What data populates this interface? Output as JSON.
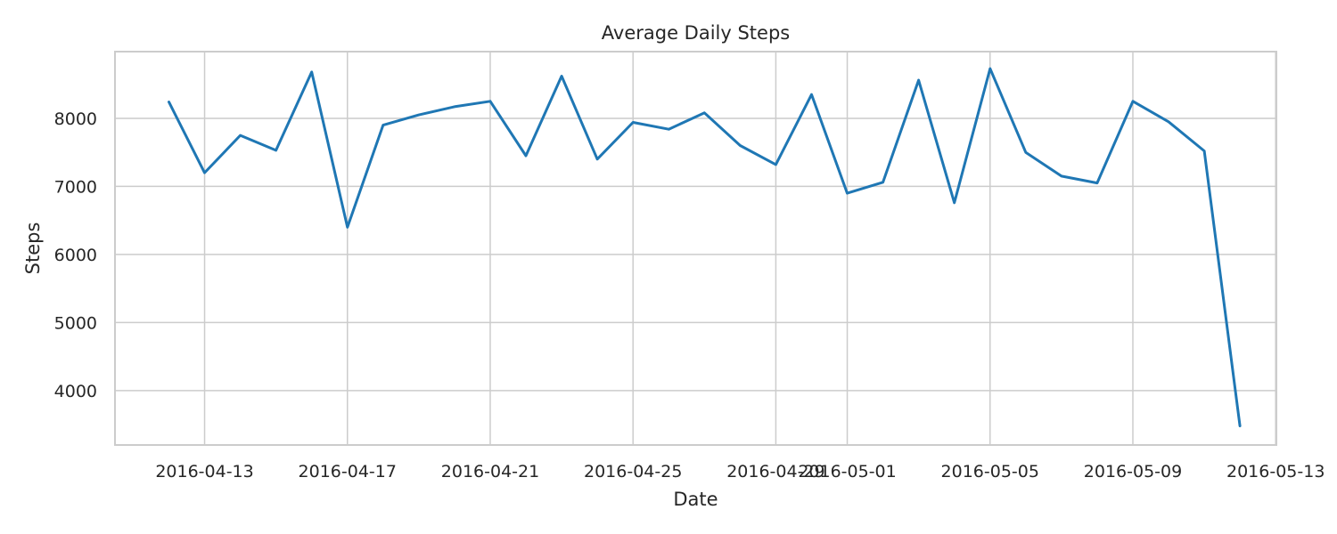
{
  "chart_data": {
    "type": "line",
    "title": "Average Daily Steps",
    "xlabel": "Date",
    "ylabel": "Steps",
    "x_ticks": [
      "2016-04-13",
      "2016-04-17",
      "2016-04-21",
      "2016-04-25",
      "2016-04-29",
      "2016-05-01",
      "2016-05-05",
      "2016-05-09",
      "2016-05-13"
    ],
    "y_ticks": [
      4000,
      5000,
      6000,
      7000,
      8000
    ],
    "xlim": [
      "2016-04-10",
      "2016-05-13"
    ],
    "ylim": [
      3200,
      8980
    ],
    "grid": true,
    "colors": {
      "line": "#1f77b4",
      "grid": "#cccccc",
      "text": "#262626"
    },
    "series": [
      {
        "x": [
          "2016-04-12",
          "2016-04-13",
          "2016-04-14",
          "2016-04-15",
          "2016-04-16",
          "2016-04-17",
          "2016-04-18",
          "2016-04-19",
          "2016-04-20",
          "2016-04-21",
          "2016-04-22",
          "2016-04-23",
          "2016-04-24",
          "2016-04-25",
          "2016-04-26",
          "2016-04-27",
          "2016-04-28",
          "2016-04-29",
          "2016-04-30",
          "2016-05-01",
          "2016-05-02",
          "2016-05-03",
          "2016-05-04",
          "2016-05-05",
          "2016-05-06",
          "2016-05-07",
          "2016-05-08",
          "2016-05-09",
          "2016-05-10",
          "2016-05-11",
          "2016-05-12"
        ],
        "values": [
          8240,
          7200,
          7750,
          7530,
          8680,
          6400,
          7900,
          8050,
          8170,
          8250,
          7450,
          8620,
          7400,
          7940,
          7840,
          8080,
          7600,
          7320,
          8350,
          6900,
          7060,
          8560,
          6760,
          8730,
          7500,
          7150,
          7050,
          8250,
          7950,
          7520,
          3480
        ]
      }
    ]
  }
}
